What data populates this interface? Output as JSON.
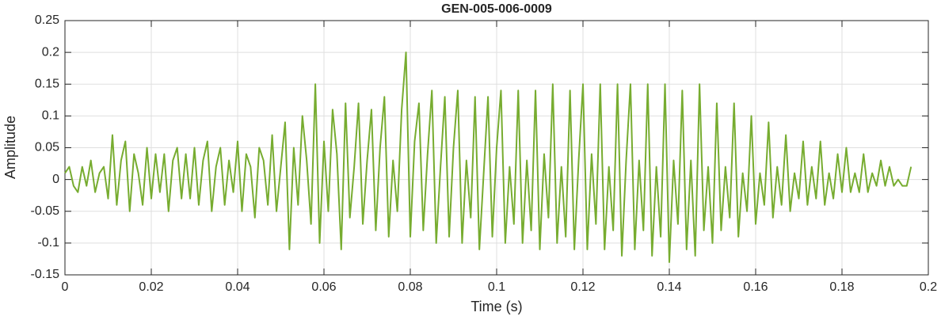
{
  "chart_data": {
    "type": "line",
    "title": "GEN-005-006-0009",
    "xlabel": "Time (s)",
    "ylabel": "Amplitude",
    "xlim": [
      0,
      0.2
    ],
    "ylim": [
      -0.15,
      0.25
    ],
    "xticks": [
      0,
      0.02,
      0.04,
      0.06,
      0.08,
      0.1,
      0.12,
      0.14,
      0.16,
      0.18,
      0.2
    ],
    "yticks": [
      -0.15,
      -0.1,
      -0.05,
      0,
      0.05,
      0.1,
      0.15,
      0.2,
      0.25
    ],
    "grid": true,
    "x": [
      0,
      0.001,
      0.002,
      0.003,
      0.004,
      0.005,
      0.006,
      0.007,
      0.008,
      0.009,
      0.01,
      0.011,
      0.012,
      0.013,
      0.014,
      0.015,
      0.016,
      0.017,
      0.018,
      0.019,
      0.02,
      0.021,
      0.022,
      0.023,
      0.024,
      0.025,
      0.026,
      0.027,
      0.028,
      0.029,
      0.03,
      0.031,
      0.032,
      0.033,
      0.034,
      0.035,
      0.036,
      0.037,
      0.038,
      0.039,
      0.04,
      0.041,
      0.042,
      0.043,
      0.044,
      0.045,
      0.046,
      0.047,
      0.048,
      0.049,
      0.05,
      0.051,
      0.052,
      0.053,
      0.054,
      0.055,
      0.056,
      0.057,
      0.058,
      0.059,
      0.06,
      0.061,
      0.062,
      0.063,
      0.064,
      0.065,
      0.066,
      0.067,
      0.068,
      0.069,
      0.07,
      0.071,
      0.072,
      0.073,
      0.074,
      0.075,
      0.076,
      0.077,
      0.078,
      0.079,
      0.08,
      0.081,
      0.082,
      0.083,
      0.084,
      0.085,
      0.086,
      0.087,
      0.088,
      0.089,
      0.09,
      0.091,
      0.092,
      0.093,
      0.094,
      0.095,
      0.096,
      0.097,
      0.098,
      0.099,
      0.1,
      0.101,
      0.102,
      0.103,
      0.104,
      0.105,
      0.106,
      0.107,
      0.108,
      0.109,
      0.11,
      0.111,
      0.112,
      0.113,
      0.114,
      0.115,
      0.116,
      0.117,
      0.118,
      0.119,
      0.12,
      0.121,
      0.122,
      0.123,
      0.124,
      0.125,
      0.126,
      0.127,
      0.128,
      0.129,
      0.13,
      0.131,
      0.132,
      0.133,
      0.134,
      0.135,
      0.136,
      0.137,
      0.138,
      0.139,
      0.14,
      0.141,
      0.142,
      0.143,
      0.144,
      0.145,
      0.146,
      0.147,
      0.148,
      0.149,
      0.15,
      0.151,
      0.152,
      0.153,
      0.154,
      0.155,
      0.156,
      0.157,
      0.158,
      0.159,
      0.16,
      0.161,
      0.162,
      0.163,
      0.164,
      0.165,
      0.166,
      0.167,
      0.168,
      0.169,
      0.17,
      0.171,
      0.172,
      0.173,
      0.174,
      0.175,
      0.176,
      0.177,
      0.178,
      0.179,
      0.18,
      0.181,
      0.182,
      0.183,
      0.184,
      0.185,
      0.186,
      0.187,
      0.188,
      0.189,
      0.19,
      0.191,
      0.192,
      0.193,
      0.194,
      0.195,
      0.196
    ],
    "series": [
      {
        "color": "#77ac30",
        "values": [
          0.01,
          0.02,
          -0.01,
          -0.02,
          0.02,
          -0.01,
          0.03,
          -0.02,
          0.01,
          0.02,
          -0.03,
          0.07,
          -0.04,
          0.03,
          0.06,
          -0.05,
          0.04,
          0.01,
          -0.04,
          0.05,
          -0.03,
          0.04,
          -0.02,
          0.04,
          -0.05,
          0.03,
          0.05,
          -0.03,
          0.04,
          -0.03,
          0.05,
          -0.04,
          0.03,
          0.06,
          -0.05,
          0.02,
          0.05,
          -0.04,
          0.03,
          -0.02,
          0.06,
          -0.05,
          0.04,
          0.02,
          -0.06,
          0.05,
          0.03,
          -0.04,
          0.07,
          -0.05,
          0.02,
          0.09,
          -0.11,
          0.05,
          -0.04,
          0.1,
          0.03,
          -0.07,
          0.15,
          -0.1,
          0.06,
          -0.05,
          0.11,
          0.04,
          -0.11,
          0.12,
          -0.06,
          0.02,
          0.12,
          -0.07,
          0.03,
          0.11,
          -0.08,
          0.05,
          0.13,
          -0.09,
          0.03,
          -0.05,
          0.11,
          0.2,
          -0.09,
          0.06,
          0.12,
          -0.08,
          0.04,
          0.14,
          -0.1,
          0.02,
          0.13,
          -0.09,
          0.05,
          0.14,
          -0.1,
          0.03,
          -0.06,
          0.13,
          -0.11,
          0.01,
          0.13,
          -0.09,
          0.05,
          0.14,
          -0.1,
          0.02,
          -0.07,
          0.14,
          -0.1,
          0.03,
          -0.08,
          0.14,
          -0.11,
          0.04,
          -0.06,
          0.15,
          -0.1,
          0.02,
          -0.09,
          0.14,
          -0.11,
          0.03,
          0.15,
          -0.11,
          0.04,
          -0.07,
          0.15,
          -0.11,
          0.02,
          -0.08,
          0.15,
          -0.12,
          0.03,
          0.15,
          -0.11,
          0.03,
          -0.08,
          0.15,
          -0.12,
          0.02,
          -0.09,
          0.15,
          -0.13,
          0.03,
          -0.07,
          0.14,
          -0.11,
          0.03,
          -0.12,
          0.15,
          -0.08,
          0.02,
          -0.1,
          0.12,
          -0.08,
          0.02,
          -0.06,
          0.12,
          -0.09,
          0.01,
          -0.05,
          0.1,
          -0.07,
          0.01,
          -0.04,
          0.09,
          -0.06,
          0.02,
          -0.04,
          0.07,
          -0.05,
          0.01,
          -0.03,
          0.06,
          -0.04,
          0.02,
          -0.03,
          0.06,
          -0.04,
          0.01,
          -0.03,
          0.04,
          -0.02,
          0.05,
          -0.02,
          0.01,
          -0.02,
          0.04,
          -0.02,
          0.01,
          -0.01,
          0.03,
          -0.01,
          0.02,
          -0.01,
          0,
          -0.01,
          -0.01,
          0.02
        ]
      }
    ]
  }
}
